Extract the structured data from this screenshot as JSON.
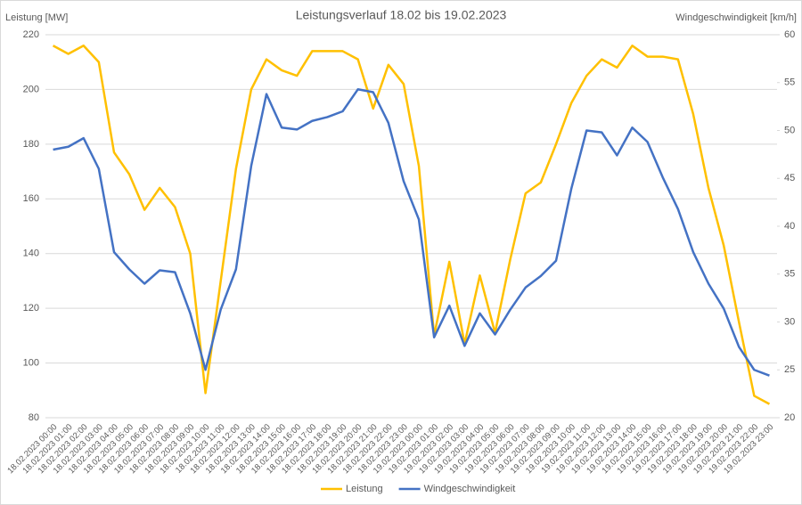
{
  "chart_data": {
    "type": "line",
    "title": "Leistungsverlauf 18.02 bis 19.02.2023",
    "y_label": "Leistung [MW]",
    "y2_label": "Windgeschwindigkeit [km/h]",
    "categories": [
      "18.02.2023 00:00",
      "18.02.2023 01:00",
      "18.02.2023 02:00",
      "18.02.2023 03:00",
      "18.02.2023 04:00",
      "18.02.2023 05:00",
      "18.02.2023 06:00",
      "18.02.2023 07:00",
      "18.02.2023 08:00",
      "18.02.2023 09:00",
      "18.02.2023 10:00",
      "18.02.2023 11:00",
      "18.02.2023 12:00",
      "18.02.2023 13:00",
      "18.02.2023 14:00",
      "18.02.2023 15:00",
      "18.02.2023 16:00",
      "18.02.2023 17:00",
      "18.02.2023 18:00",
      "18.02.2023 19:00",
      "18.02.2023 20:00",
      "18.02.2023 21:00",
      "18.02.2023 22:00",
      "18.02.2023 23:00",
      "19.02.2023 00:00",
      "19.02.2023 01:00",
      "19.02.2023 02:00",
      "19.02.2023 03:00",
      "19.02.2023 04:00",
      "19.02.2023 05:00",
      "19.02.2023 06:00",
      "19.02.2023 07:00",
      "19.02.2023 08:00",
      "19.02.2023 09:00",
      "19.02.2023 10:00",
      "19.02.2023 11:00",
      "19.02.2023 12:00",
      "19.02.2023 13:00",
      "19.02.2023 14:00",
      "19.02.2023 15:00",
      "19.02.2023 16:00",
      "19.02.2023 17:00",
      "19.02.2023 18:00",
      "19.02.2023 19:00",
      "19.02.2023 20:00",
      "19.02.2023 21:00",
      "19.02.2023 22:00",
      "19.02.2023 23:00"
    ],
    "series": [
      {
        "name": "Leistung",
        "color": "#FFC000",
        "values": [
          216,
          213,
          216,
          210,
          177,
          169,
          156,
          164,
          157,
          140,
          89,
          130,
          171,
          200,
          211,
          207,
          205,
          214,
          214,
          214,
          211,
          193,
          209,
          202,
          172,
          110,
          137,
          107,
          132,
          111,
          138,
          162,
          166,
          180,
          195,
          205,
          211,
          208,
          216,
          212,
          212,
          211,
          191,
          164,
          143,
          115,
          88,
          85
        ]
      },
      {
        "name": "Windgeschwindigkeit",
        "color": "#4472C4",
        "axis": "y2",
        "values": [
          48.0,
          48.3,
          49.2,
          46.0,
          37.3,
          35.5,
          34.0,
          35.4,
          35.2,
          30.9,
          25.0,
          31.3,
          35.5,
          46.3,
          53.8,
          50.3,
          50.1,
          51.0,
          51.4,
          52.0,
          54.3,
          54.0,
          50.8,
          44.7,
          40.7,
          28.4,
          31.7,
          27.5,
          30.9,
          28.7,
          31.3,
          33.6,
          34.8,
          36.4,
          43.9,
          50.0,
          49.8,
          47.4,
          50.3,
          48.8,
          45.1,
          41.8,
          37.3,
          34.0,
          31.4,
          27.4,
          25.0,
          24.4
        ]
      }
    ],
    "ylim": [
      80,
      220
    ],
    "yticks": [
      80,
      100,
      120,
      140,
      160,
      180,
      200,
      220
    ],
    "y2lim": [
      20,
      60
    ],
    "y2ticks": [
      20,
      25,
      30,
      35,
      40,
      45,
      50,
      55,
      60
    ],
    "grid": true,
    "legend": "bottom"
  }
}
